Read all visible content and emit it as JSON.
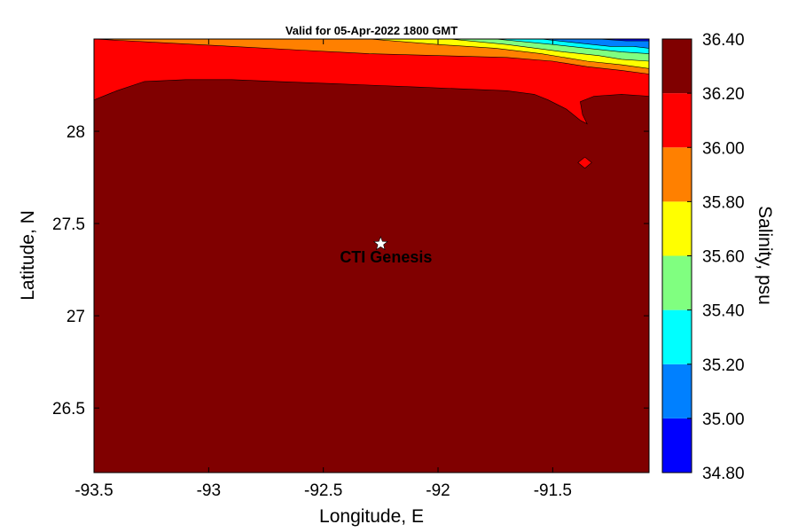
{
  "chart_data": {
    "type": "heatmap",
    "subtype": "filled-contour-map",
    "title": "Valid for 05-Apr-2022 1800 GMT",
    "xlabel": "Longitude, E",
    "ylabel": "Latitude, N",
    "xlim": [
      -93.5,
      -91.08
    ],
    "ylim": [
      26.15,
      28.5
    ],
    "x_ticks": [
      -93.5,
      -93,
      -92.5,
      -92,
      -91.5
    ],
    "x_tick_labels": [
      "-93.5",
      "-93",
      "-92.5",
      "-92",
      "-91.5"
    ],
    "y_ticks": [
      26.5,
      27,
      27.5,
      28
    ],
    "y_tick_labels": [
      "26.5",
      "27",
      "27.5",
      "28"
    ],
    "grid": false,
    "colorbar": {
      "label": "Salinity, psu",
      "levels": [
        34.8,
        35.0,
        35.2,
        35.4,
        35.6,
        35.8,
        36.0,
        36.2,
        36.4
      ],
      "level_labels": [
        "34.80",
        "35.00",
        "35.20",
        "35.40",
        "35.60",
        "35.80",
        "36.00",
        "36.20",
        "36.40"
      ],
      "colors": [
        "#0000ff",
        "#0080ff",
        "#00ffff",
        "#80ff80",
        "#ffff00",
        "#ff8000",
        "#ff0000",
        "#800000"
      ]
    },
    "background_class_color": "#800000",
    "contour_bands": [
      {
        "range": [
          36.0,
          36.2
        ],
        "color": "#ff0000",
        "lower_boundary": [
          [
            -93.5,
            28.17
          ],
          [
            -93.4,
            28.22
          ],
          [
            -93.28,
            28.27
          ],
          [
            -93.1,
            28.28
          ],
          [
            -92.9,
            28.28
          ],
          [
            -92.7,
            28.27
          ],
          [
            -92.5,
            28.26
          ],
          [
            -92.3,
            28.25
          ],
          [
            -92.1,
            28.24
          ],
          [
            -91.9,
            28.23
          ],
          [
            -91.7,
            28.22
          ],
          [
            -91.58,
            28.2
          ],
          [
            -91.52,
            28.17
          ],
          [
            -91.44,
            28.12
          ],
          [
            -91.38,
            28.06
          ],
          [
            -91.35,
            28.04
          ],
          [
            -91.37,
            28.09
          ],
          [
            -91.38,
            28.16
          ],
          [
            -91.32,
            28.19
          ],
          [
            -91.2,
            28.2
          ],
          [
            -91.08,
            28.19
          ]
        ]
      },
      {
        "range": [
          35.8,
          36.0
        ],
        "color": "#ff8000",
        "lower_boundary": [
          [
            -93.5,
            28.5
          ],
          [
            -93.2,
            28.48
          ],
          [
            -92.9,
            28.46
          ],
          [
            -92.6,
            28.44
          ],
          [
            -92.3,
            28.42
          ],
          [
            -92.0,
            28.41
          ],
          [
            -91.7,
            28.4
          ],
          [
            -91.5,
            28.38
          ],
          [
            -91.35,
            28.35
          ],
          [
            -91.2,
            28.33
          ],
          [
            -91.08,
            28.31
          ]
        ]
      },
      {
        "range": [
          35.6,
          35.8
        ],
        "color": "#ffff00",
        "lower_boundary": [
          [
            -92.3,
            28.5
          ],
          [
            -92.0,
            28.47
          ],
          [
            -91.75,
            28.45
          ],
          [
            -91.55,
            28.42
          ],
          [
            -91.35,
            28.38
          ],
          [
            -91.2,
            28.36
          ],
          [
            -91.08,
            28.34
          ]
        ]
      },
      {
        "range": [
          35.4,
          35.6
        ],
        "color": "#80ff80",
        "lower_boundary": [
          [
            -91.95,
            28.5
          ],
          [
            -91.7,
            28.47
          ],
          [
            -91.45,
            28.43
          ],
          [
            -91.3,
            28.41
          ],
          [
            -91.2,
            28.39
          ],
          [
            -91.08,
            28.38
          ]
        ]
      },
      {
        "range": [
          35.2,
          35.4
        ],
        "color": "#00ffff",
        "lower_boundary": [
          [
            -91.75,
            28.5
          ],
          [
            -91.5,
            28.47
          ],
          [
            -91.35,
            28.45
          ],
          [
            -91.2,
            28.43
          ],
          [
            -91.08,
            28.42
          ]
        ]
      },
      {
        "range": [
          35.0,
          35.2
        ],
        "color": "#0080ff",
        "lower_boundary": [
          [
            -91.55,
            28.5
          ],
          [
            -91.4,
            28.48
          ],
          [
            -91.25,
            28.46
          ],
          [
            -91.15,
            28.46
          ],
          [
            -91.08,
            28.45
          ]
        ]
      },
      {
        "range": [
          34.8,
          35.0
        ],
        "color": "#0000ff",
        "lower_boundary": [
          [
            -91.3,
            28.5
          ],
          [
            -91.18,
            28.49
          ],
          [
            -91.08,
            28.49
          ]
        ]
      }
    ],
    "isolated_patches": [
      {
        "range": [
          36.0,
          36.2
        ],
        "color": "#ff0000",
        "outline": [
          [
            -91.39,
            27.83
          ],
          [
            -91.36,
            27.86
          ],
          [
            -91.33,
            27.83
          ],
          [
            -91.36,
            27.8
          ]
        ]
      }
    ],
    "marker": {
      "lon": -92.25,
      "lat": 27.39,
      "symbol": "star",
      "label": "CTI Genesis"
    }
  }
}
